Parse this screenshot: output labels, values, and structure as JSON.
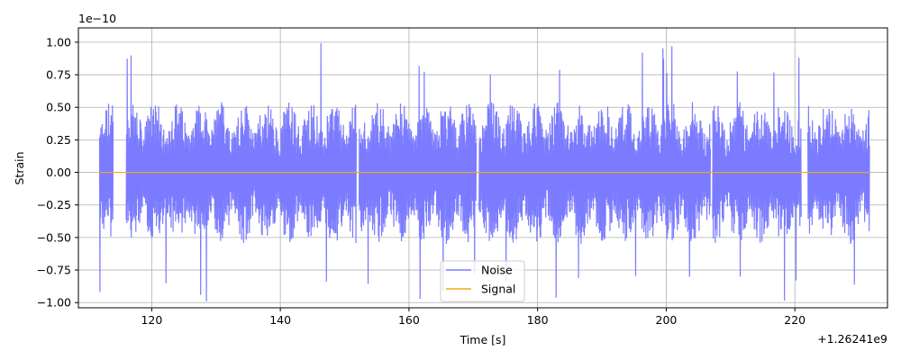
{
  "chart_data": {
    "type": "line",
    "xlabel": "Time [s]",
    "ylabel": "Strain",
    "x_offset_label": "+1.26241e9",
    "y_scale_label": "1e−10",
    "xlim": [
      108.6,
      234.4
    ],
    "ylim": [
      -1.04,
      1.11
    ],
    "x_ticks": [
      120,
      140,
      160,
      180,
      200,
      220
    ],
    "x_tick_labels": [
      "120",
      "140",
      "160",
      "180",
      "200",
      "220"
    ],
    "y_ticks": [
      -1.0,
      -0.75,
      -0.5,
      -0.25,
      0.0,
      0.25,
      0.5,
      0.75,
      1.0
    ],
    "y_tick_labels": [
      "−1.00",
      "−0.75",
      "−0.50",
      "−0.25",
      "0.00",
      "0.25",
      "0.50",
      "0.75",
      "1.00"
    ],
    "grid": true,
    "legend_position": "bottom-center",
    "series": [
      {
        "name": "Noise",
        "color": "#7b7bff",
        "x_range": [
          111.9,
          231.6
        ],
        "typical_amplitude": 0.55,
        "peak_amplitude": 1.0,
        "gaps": [
          [
            114.0,
            116.0
          ],
          [
            151.8,
            152.2
          ],
          [
            170.5,
            170.9
          ],
          [
            206.9,
            207.2
          ],
          [
            221.0,
            222.0
          ]
        ]
      },
      {
        "name": "Signal",
        "color": "#f5a623",
        "x": [
          111.9,
          231.6
        ],
        "y": [
          0.0,
          0.0
        ]
      }
    ]
  }
}
